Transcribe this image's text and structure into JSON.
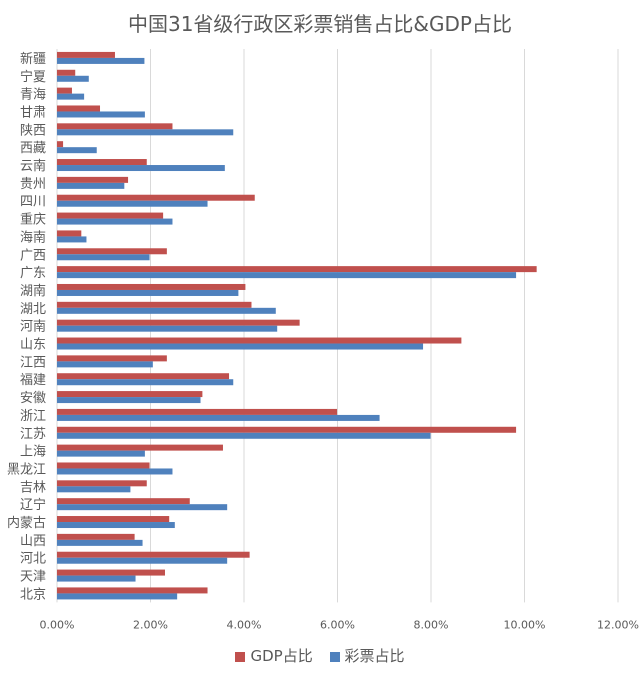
{
  "chart_data": {
    "type": "bar",
    "orientation": "horizontal",
    "title": "中国31省级行政区彩票销售占比&GDP占比",
    "categories": [
      "新疆",
      "宁夏",
      "青海",
      "甘肃",
      "陕西",
      "西藏",
      "云南",
      "贵州",
      "四川",
      "重庆",
      "海南",
      "广西",
      "广东",
      "湖南",
      "湖北",
      "河南",
      "山东",
      "江西",
      "福建",
      "安徽",
      "浙江",
      "江苏",
      "上海",
      "黑龙江",
      "吉林",
      "辽宁",
      "内蒙古",
      "山西",
      "河北",
      "天津",
      "北京"
    ],
    "series": [
      {
        "name": "GDP占比",
        "color": "#c0504d",
        "values": [
          1.24,
          0.39,
          0.32,
          0.92,
          2.47,
          0.13,
          1.92,
          1.52,
          4.23,
          2.27,
          0.52,
          2.35,
          10.26,
          4.03,
          4.16,
          5.19,
          8.65,
          2.35,
          3.68,
          3.11,
          5.99,
          9.82,
          3.55,
          1.98,
          1.92,
          2.84,
          2.4,
          1.66,
          4.12,
          2.31,
          3.22
        ]
      },
      {
        "name": "彩票占比",
        "color": "#4f81bd",
        "values": [
          1.87,
          0.68,
          0.58,
          1.88,
          3.77,
          0.85,
          3.59,
          1.44,
          3.22,
          2.47,
          0.63,
          1.98,
          9.82,
          3.88,
          4.68,
          4.71,
          7.83,
          2.05,
          3.77,
          3.07,
          6.9,
          7.99,
          1.88,
          2.47,
          1.57,
          3.64,
          2.52,
          1.83,
          3.64,
          1.68,
          2.57
        ]
      }
    ],
    "xlim": [
      0,
      12
    ],
    "x_ticks": [
      "0.00%",
      "2.00%",
      "4.00%",
      "6.00%",
      "8.00%",
      "10.00%",
      "12.00%"
    ],
    "unit": "%",
    "grid": "vertical",
    "legend": "bottom"
  }
}
